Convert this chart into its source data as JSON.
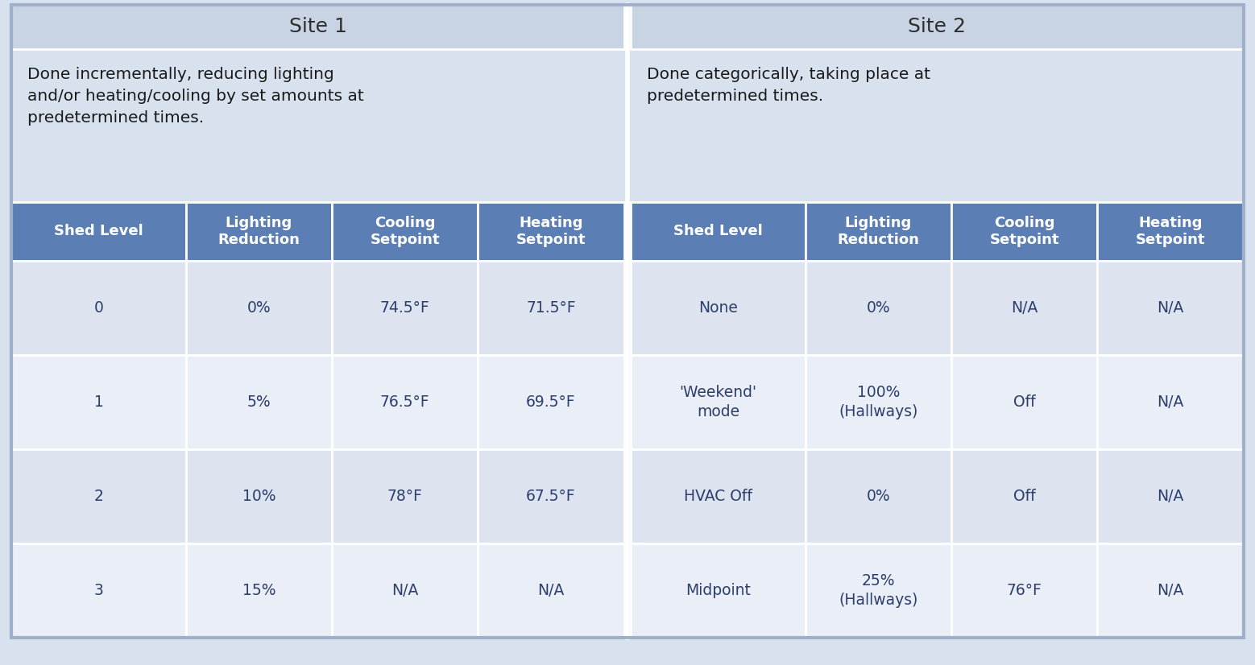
{
  "site1_header": "Site 1",
  "site2_header": "Site 2",
  "site1_description": "Done incrementally, reducing lighting\nand/or heating/cooling by set amounts at\npredetermined times.",
  "site2_description": "Done categorically, taking place at\npredetermined times.",
  "col_headers": [
    "Shed Level",
    "Lighting\nReduction",
    "Cooling\nSetpoint",
    "Heating\nSetpoint"
  ],
  "site1_data": [
    [
      "0",
      "0%",
      "74.5°F",
      "71.5°F"
    ],
    [
      "1",
      "5%",
      "76.5°F",
      "69.5°F"
    ],
    [
      "2",
      "10%",
      "78°F",
      "67.5°F"
    ],
    [
      "3",
      "15%",
      "N/A",
      "N/A"
    ]
  ],
  "site2_data": [
    [
      "None",
      "0%",
      "N/A",
      "N/A"
    ],
    [
      "'Weekend'\nmode",
      "100%\n(Hallways)",
      "Off",
      "N/A"
    ],
    [
      "HVAC Off",
      "0%",
      "Off",
      "N/A"
    ],
    [
      "Midpoint",
      "25%\n(Hallways)",
      "76°F",
      "N/A"
    ]
  ],
  "header_bg": "#5b7fb5",
  "header_fg": "#ffffff",
  "row_bg_light": "#dde4f0",
  "row_bg_white": "#eaeef6",
  "site_header_bg": "#c8d4e3",
  "site_header_fg": "#2e2e2e",
  "outer_bg": "#d8e2ef",
  "text_color": "#2c3e6b",
  "desc_color": "#1a1a1a",
  "divider_color": "#ffffff",
  "border_color": "#a0b0c8"
}
